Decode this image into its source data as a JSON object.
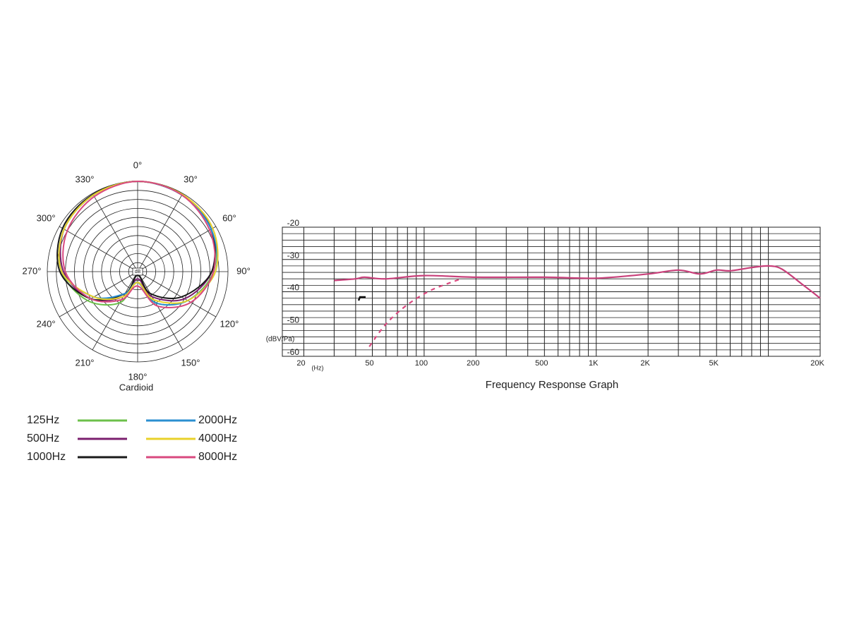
{
  "chart_data": [
    {
      "type": "polar",
      "caption": "Cardioid",
      "center_label": "dB",
      "theta": [
        0,
        30,
        60,
        90,
        120,
        150,
        180,
        210,
        240,
        270,
        300,
        330
      ],
      "thetaticks": [
        {
          "value": 0,
          "label": "0°"
        },
        {
          "value": 30,
          "label": "30°"
        },
        {
          "value": 60,
          "label": "60°"
        },
        {
          "value": 90,
          "label": "90°"
        },
        {
          "value": 120,
          "label": "120°"
        },
        {
          "value": 150,
          "label": "150°"
        },
        {
          "value": 180,
          "label": "180°"
        },
        {
          "value": 210,
          "label": "210°"
        },
        {
          "value": 240,
          "label": "240°"
        },
        {
          "value": 270,
          "label": "270°"
        },
        {
          "value": 300,
          "label": "300°"
        },
        {
          "value": 330,
          "label": "330°"
        }
      ],
      "rlim": [
        -25,
        0
      ],
      "rticks": [
        -22.5,
        -20,
        -17.5,
        -15,
        -12.5,
        -10,
        -7.5,
        -5,
        -2.5,
        0
      ],
      "series": [
        {
          "name": "125Hz",
          "color": "#6cc04a",
          "values": [
            0,
            -0.5,
            -1.5,
            -4,
            -9,
            -15,
            -22,
            -15,
            -9,
            -4,
            -1.5,
            -0.5
          ]
        },
        {
          "name": "500Hz",
          "color": "#7b1f6e",
          "values": [
            0,
            -0.5,
            -1.5,
            -4.5,
            -10,
            -17,
            -23,
            -17,
            -10,
            -4.5,
            -1.5,
            -0.5
          ]
        },
        {
          "name": "1000Hz",
          "color": "#1a1a1a",
          "values": [
            0,
            -0.3,
            -1.5,
            -4.5,
            -11,
            -18,
            -24,
            -18,
            -10,
            -3.5,
            -1,
            -0.3
          ]
        },
        {
          "name": "2000Hz",
          "color": "#2b8fd0",
          "values": [
            0,
            -0.5,
            -1.5,
            -3.5,
            -9,
            -15,
            -22,
            -18,
            -11,
            -4,
            -1.5,
            -0.5
          ]
        },
        {
          "name": "4000Hz",
          "color": "#e8d12a",
          "values": [
            0,
            -0.3,
            -1,
            -3.5,
            -9,
            -16,
            -22,
            -17,
            -11,
            -4,
            -1.5,
            -0.5
          ]
        },
        {
          "name": "8000Hz",
          "color": "#d9497f",
          "values": [
            0,
            -0.5,
            -2,
            -4,
            -8,
            -14,
            -21,
            -16,
            -10,
            -5,
            -2.5,
            -1
          ]
        }
      ]
    },
    {
      "type": "line",
      "title": "Frequency Response Graph",
      "y_label": "(dBV/Pa)",
      "x_unit": "(Hz)",
      "log_x": true,
      "xlim": [
        15,
        20000
      ],
      "ylim": [
        -60,
        -20
      ],
      "xticks": [
        20,
        50,
        100,
        200,
        500,
        {
          "value": 1000,
          "label": "1K"
        },
        {
          "value": 2000,
          "label": "2K"
        },
        {
          "value": 5000,
          "label": "5K"
        },
        {
          "value": 20000,
          "label": "20K"
        }
      ],
      "xgrid": [
        20,
        30,
        40,
        50,
        60,
        70,
        80,
        90,
        100,
        200,
        300,
        400,
        500,
        600,
        700,
        800,
        900,
        1000,
        2000,
        3000,
        4000,
        5000,
        6000,
        7000,
        8000,
        9000,
        10000,
        20000
      ],
      "yticks": [
        -60,
        -50,
        -40,
        -30,
        -20
      ],
      "ygrid": [
        -58,
        -56,
        -54,
        -52,
        -48,
        -46,
        -44,
        -42,
        -38,
        -36,
        -34,
        -32,
        -28,
        -26,
        -24,
        -22
      ],
      "series": [
        {
          "color": "#c8407a",
          "dashed": false,
          "x": [
            30,
            40,
            45,
            60,
            100,
            200,
            500,
            1000,
            2000,
            3000,
            4000,
            5000,
            6000,
            8000,
            10000,
            12000,
            16000,
            20000
          ],
          "values": [
            -36.5,
            -36,
            -35.5,
            -36,
            -35,
            -35.5,
            -35.5,
            -35.8,
            -34.5,
            -33.3,
            -34.5,
            -33.3,
            -33.5,
            -32.5,
            -32,
            -33,
            -38,
            -42
          ]
        },
        {
          "color": "#d9497f",
          "dashed": true,
          "x": [
            48,
            60,
            80,
            110,
            160
          ],
          "values": [
            -57,
            -50,
            -44,
            -39.5,
            -36.2
          ]
        }
      ]
    }
  ]
}
